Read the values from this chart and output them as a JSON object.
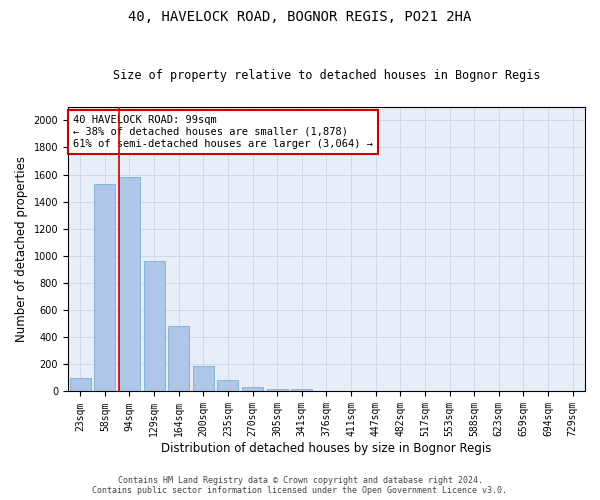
{
  "title_line1": "40, HAVELOCK ROAD, BOGNOR REGIS, PO21 2HA",
  "title_line2": "Size of property relative to detached houses in Bognor Regis",
  "xlabel": "Distribution of detached houses by size in Bognor Regis",
  "ylabel": "Number of detached properties",
  "categories": [
    "23sqm",
    "58sqm",
    "94sqm",
    "129sqm",
    "164sqm",
    "200sqm",
    "235sqm",
    "270sqm",
    "305sqm",
    "341sqm",
    "376sqm",
    "411sqm",
    "447sqm",
    "482sqm",
    "517sqm",
    "553sqm",
    "588sqm",
    "623sqm",
    "659sqm",
    "694sqm",
    "729sqm"
  ],
  "values": [
    100,
    1530,
    1580,
    960,
    480,
    190,
    85,
    35,
    20,
    15,
    5,
    0,
    0,
    0,
    0,
    0,
    0,
    0,
    0,
    0,
    0
  ],
  "bar_color": "#aec6e8",
  "bar_edge_color": "#7bafd4",
  "vline_x_index": 2,
  "vline_color": "#cc0000",
  "annotation_text": "40 HAVELOCK ROAD: 99sqm\n← 38% of detached houses are smaller (1,878)\n61% of semi-detached houses are larger (3,064) →",
  "annotation_box_color": "#ffffff",
  "annotation_box_edge_color": "#cc0000",
  "ylim": [
    0,
    2100
  ],
  "yticks": [
    0,
    200,
    400,
    600,
    800,
    1000,
    1200,
    1400,
    1600,
    1800,
    2000
  ],
  "footer_line1": "Contains HM Land Registry data © Crown copyright and database right 2024.",
  "footer_line2": "Contains public sector information licensed under the Open Government Licence v3.0.",
  "bg_color": "#ffffff",
  "plot_bg_color": "#e8eef8",
  "grid_color": "#c8d4e8",
  "title_fontsize": 10,
  "subtitle_fontsize": 8.5,
  "tick_fontsize": 7,
  "label_fontsize": 8.5,
  "annotation_fontsize": 7.5,
  "footer_fontsize": 6
}
